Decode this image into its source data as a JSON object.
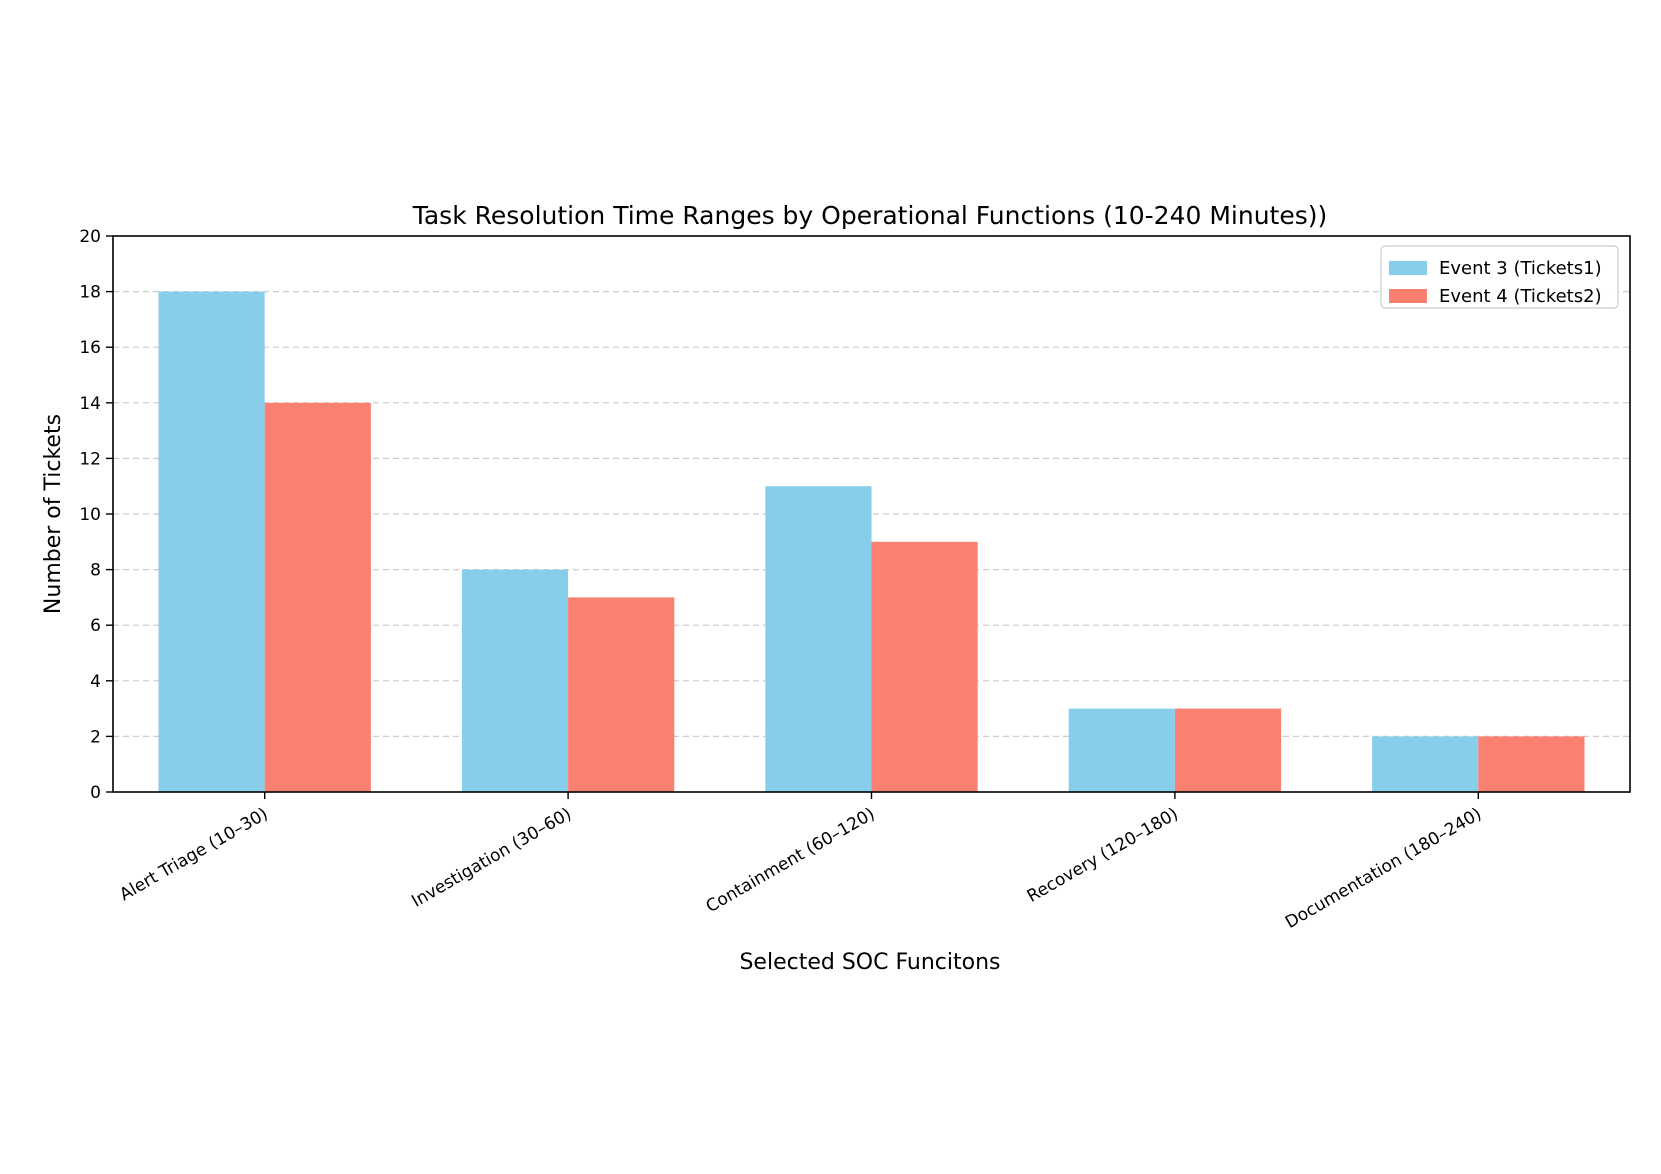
{
  "chart_data": {
    "type": "bar",
    "title": "Task Resolution Time Ranges by Operational Functions (10-240 Minutes))",
    "xlabel": "Selected SOC Funcitons",
    "ylabel": "Number of Tickets",
    "categories": [
      "Alert Triage (10–30)",
      "Investigation (30–60)",
      "Containment (60–120)",
      "Recovery (120–180)",
      "Documentation (180–240)"
    ],
    "series": [
      {
        "name": "Event 3 (Tickets1)",
        "values": [
          18,
          8,
          11,
          3,
          2
        ],
        "color": "#87ceeb"
      },
      {
        "name": "Event 4 (Tickets2)",
        "values": [
          14,
          7,
          9,
          3,
          2
        ],
        "color": "#fa8072"
      }
    ],
    "ylim": [
      0,
      20
    ],
    "yticks": [
      0,
      2,
      4,
      6,
      8,
      10,
      12,
      14,
      16,
      18,
      20
    ],
    "grid": "y-dashed",
    "legend_position": "top-right"
  }
}
